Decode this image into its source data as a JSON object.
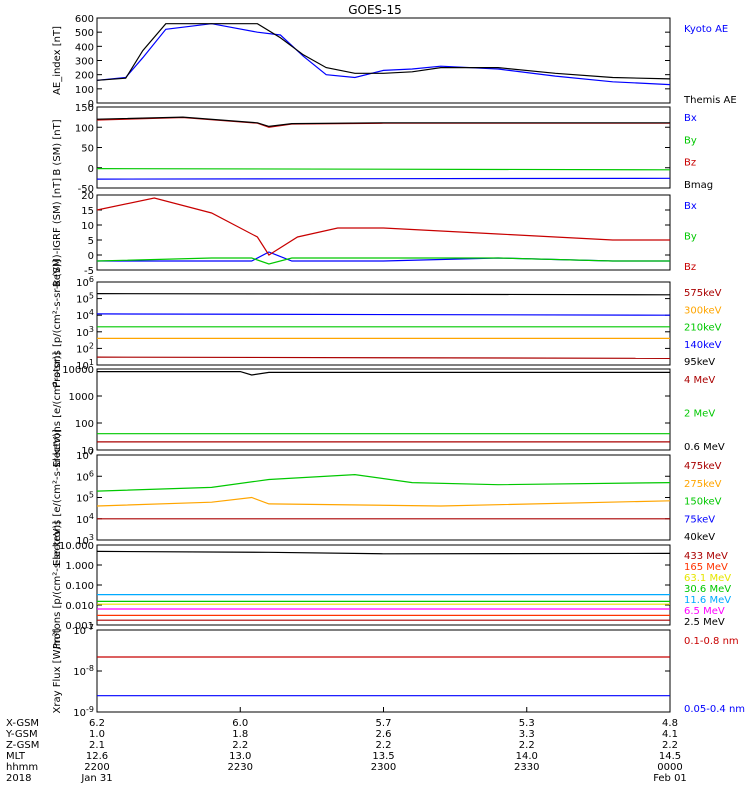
{
  "title": "GOES-15",
  "colors": {
    "black": "#000000",
    "blue": "#0000ff",
    "green": "#00c800",
    "red": "#c80000",
    "orange": "#ffa500",
    "yellow": "#e6e600",
    "cyan": "#00aaff",
    "magenta": "#ff00ff",
    "darkred": "#aa0000"
  },
  "chart_data": [
    {
      "type": "line",
      "ylabel": "AE_index [nT]",
      "yscale": "linear",
      "ylim": [
        0,
        600
      ],
      "yticks": [
        "600",
        "500",
        "400",
        "300",
        "200",
        "100",
        "0"
      ],
      "series": [
        {
          "name": "Kyoto AE",
          "color": "#0000ff",
          "x": [
            0,
            0.05,
            0.08,
            0.12,
            0.2,
            0.28,
            0.32,
            0.36,
            0.4,
            0.45,
            0.5,
            0.55,
            0.6,
            0.7,
            0.8,
            0.9,
            1
          ],
          "y": [
            160,
            180,
            320,
            520,
            560,
            500,
            480,
            330,
            200,
            180,
            230,
            240,
            260,
            240,
            190,
            150,
            130
          ]
        },
        {
          "name": "Themis AE",
          "color": "#000000",
          "x": [
            0,
            0.05,
            0.08,
            0.12,
            0.2,
            0.28,
            0.32,
            0.36,
            0.4,
            0.45,
            0.5,
            0.55,
            0.6,
            0.7,
            0.8,
            0.9,
            1
          ],
          "y": [
            160,
            175,
            370,
            560,
            560,
            560,
            460,
            340,
            250,
            210,
            210,
            220,
            250,
            250,
            210,
            180,
            170
          ]
        }
      ]
    },
    {
      "type": "line",
      "ylabel": "B (SM) [nT]",
      "yscale": "linear",
      "ylim": [
        -50,
        150
      ],
      "yticks": [
        "150",
        "100",
        "50",
        "0",
        "-50"
      ],
      "series": [
        {
          "name": "Bx",
          "color": "#0000ff",
          "x": [
            0,
            1
          ],
          "y": [
            -28,
            -26
          ]
        },
        {
          "name": "By",
          "color": "#00c800",
          "x": [
            0,
            1
          ],
          "y": [
            -2,
            -5
          ]
        },
        {
          "name": "Bz",
          "color": "#c80000",
          "x": [
            0,
            0.15,
            0.28,
            0.3,
            0.34,
            0.5,
            0.7,
            1
          ],
          "y": [
            118,
            124,
            110,
            100,
            108,
            110,
            110,
            110
          ]
        },
        {
          "name": "Bmag",
          "color": "#000000",
          "x": [
            0,
            0.15,
            0.28,
            0.3,
            0.34,
            0.5,
            0.7,
            1
          ],
          "y": [
            120,
            125,
            111,
            102,
            109,
            111,
            111,
            111
          ]
        }
      ]
    },
    {
      "type": "line",
      "ylabel": "B (SM)-IGRF (SM) [nT]",
      "yscale": "linear",
      "ylim": [
        -5,
        20
      ],
      "yticks": [
        "20",
        "15",
        "10",
        "5",
        "0",
        "-5"
      ],
      "series": [
        {
          "name": "Bx",
          "color": "#0000ff",
          "x": [
            0,
            0.2,
            0.27,
            0.3,
            0.34,
            0.5,
            0.7,
            0.9,
            1
          ],
          "y": [
            -2,
            -2,
            -2,
            1,
            -2,
            -2,
            -1,
            -2,
            -2
          ]
        },
        {
          "name": "By",
          "color": "#00c800",
          "x": [
            0,
            0.2,
            0.27,
            0.3,
            0.34,
            0.5,
            0.7,
            0.9,
            1
          ],
          "y": [
            -2,
            -1,
            -1,
            -3,
            -1,
            -1,
            -1,
            -2,
            -2
          ]
        },
        {
          "name": "Bz",
          "color": "#c80000",
          "x": [
            0,
            0.1,
            0.2,
            0.28,
            0.3,
            0.35,
            0.42,
            0.5,
            0.6,
            0.7,
            0.8,
            0.9,
            1
          ],
          "y": [
            15,
            19,
            14,
            6,
            0,
            6,
            9,
            9,
            8,
            7,
            6,
            5,
            5
          ]
        }
      ]
    },
    {
      "type": "line",
      "ylabel": "Protons [p/(cm²-s-sr-keV)]",
      "yscale": "log",
      "ylim": [
        10,
        1000000
      ],
      "yticks": [
        "10^6",
        "10^5",
        "10^4",
        "10^3",
        "10^2",
        "10^1"
      ],
      "series": [
        {
          "name": "575keV",
          "color": "#aa0000",
          "x": [
            0,
            1
          ],
          "y": [
            30,
            25
          ]
        },
        {
          "name": "300keV",
          "color": "#ffa500",
          "x": [
            0,
            1
          ],
          "y": [
            400,
            400
          ]
        },
        {
          "name": "210keV",
          "color": "#00c800",
          "x": [
            0,
            1
          ],
          "y": [
            2000,
            2000
          ]
        },
        {
          "name": "140keV",
          "color": "#0000ff",
          "x": [
            0,
            1
          ],
          "y": [
            12000,
            10000
          ]
        },
        {
          "name": "95keV",
          "color": "#000000",
          "x": [
            0,
            1
          ],
          "y": [
            200000,
            170000
          ]
        }
      ]
    },
    {
      "type": "line",
      "ylabel": "Electrons [e/(cm²-s-sr)]",
      "yscale": "log",
      "ylim": [
        10,
        10000
      ],
      "yticks": [
        "10000",
        "1000",
        "100",
        "10"
      ],
      "series": [
        {
          "name": "4 MeV",
          "color": "#aa0000",
          "x": [
            0,
            1
          ],
          "y": [
            20,
            20
          ]
        },
        {
          "name": "2 MeV",
          "color": "#00c800",
          "x": [
            0,
            1
          ],
          "y": [
            40,
            40
          ]
        },
        {
          "name": "0.6 MeV",
          "color": "#000000",
          "x": [
            0,
            0.25,
            0.27,
            0.3,
            1
          ],
          "y": [
            8000,
            8000,
            6000,
            7500,
            7500
          ]
        }
      ]
    },
    {
      "type": "line",
      "ylabel": "Electrons [e/(cm²-s-sr-keV)]",
      "yscale": "log",
      "ylim": [
        1000,
        10000000
      ],
      "yticks": [
        "10^7",
        "10^6",
        "10^5",
        "10^4",
        "10^3"
      ],
      "series": [
        {
          "name": "475keV",
          "color": "#aa0000",
          "x": [
            0,
            0.3,
            1
          ],
          "y": [
            10000,
            10000,
            10000
          ]
        },
        {
          "name": "275keV",
          "color": "#ffa500",
          "x": [
            0,
            0.2,
            0.27,
            0.3,
            0.6,
            1
          ],
          "y": [
            40000,
            60000,
            100000,
            50000,
            40000,
            70000
          ]
        },
        {
          "name": "150keV",
          "color": "#00c800",
          "x": [
            0,
            0.2,
            0.3,
            0.45,
            0.55,
            0.7,
            1
          ],
          "y": [
            200000,
            300000,
            700000,
            1200000,
            500000,
            400000,
            500000
          ]
        },
        {
          "name": "75keV",
          "color": "#0000ff",
          "x": [],
          "y": []
        },
        {
          "name": "40keV",
          "color": "#000000",
          "x": [],
          "y": []
        }
      ]
    },
    {
      "type": "line",
      "ylabel": "Protons [p/(cm²-s-sr-keV)]",
      "yscale": "log",
      "ylim": [
        0.001,
        100
      ],
      "yticks": [
        "10.000",
        "1.000",
        "0.100",
        "0.010",
        "0.001"
      ],
      "series": [
        {
          "name": "433 MeV",
          "color": "#aa0000",
          "x": [
            0,
            1
          ],
          "y": [
            0.002,
            0.002
          ]
        },
        {
          "name": "165 MeV",
          "color": "#ff3300",
          "x": [
            0,
            1
          ],
          "y": [
            0.004,
            0.004
          ]
        },
        {
          "name": "63.1 MeV",
          "color": "#e6e600",
          "x": [
            0,
            1
          ],
          "y": [
            0.02,
            0.02
          ]
        },
        {
          "name": "30.6 MeV",
          "color": "#00c800",
          "x": [
            0,
            1
          ],
          "y": [
            0.03,
            0.03
          ]
        },
        {
          "name": "11.6 MeV",
          "color": "#00aaff",
          "x": [
            0,
            1
          ],
          "y": [
            0.08,
            0.08
          ]
        },
        {
          "name": "6.5 MeV",
          "color": "#ff00ff",
          "x": [
            0,
            1
          ],
          "y": [
            0.01,
            0.01
          ]
        },
        {
          "name": "2.5 MeV",
          "color": "#000000",
          "x": [
            0,
            0.3,
            0.5,
            1
          ],
          "y": [
            40,
            35,
            28,
            30
          ]
        }
      ]
    },
    {
      "type": "line",
      "ylabel": "Xray Flux [W/m²]",
      "yscale": "log",
      "ylim": [
        1e-09,
        1e-07
      ],
      "yticks": [
        "10^-7",
        "10^-8",
        "10^-9"
      ],
      "series": [
        {
          "name": "0.1-0.8 nm",
          "color": "#c80000",
          "x": [
            0,
            1
          ],
          "y": [
            2.2e-08,
            2.2e-08
          ]
        },
        {
          "name": "0.05-0.4 nm",
          "color": "#0000ff",
          "x": [
            0,
            1
          ],
          "y": [
            2.5e-09,
            2.5e-09
          ]
        }
      ]
    }
  ],
  "xaxis": {
    "rows": [
      {
        "label": "X-GSM",
        "values": [
          "6.2",
          "6.0",
          "5.7",
          "5.3",
          "4.8"
        ]
      },
      {
        "label": "Y-GSM",
        "values": [
          "1.0",
          "1.8",
          "2.6",
          "3.3",
          "4.1"
        ]
      },
      {
        "label": "Z-GSM",
        "values": [
          "2.1",
          "2.2",
          "2.2",
          "2.2",
          "2.2"
        ]
      },
      {
        "label": "MLT",
        "values": [
          "12.6",
          "13.0",
          "13.5",
          "14.0",
          "14.5"
        ]
      },
      {
        "label": "hhmm",
        "values": [
          "2200",
          "2230",
          "2300",
          "2330",
          "0000"
        ]
      },
      {
        "label": "2018",
        "values": [
          "Jan 31",
          "",
          "",
          "",
          "Feb 01"
        ]
      }
    ]
  }
}
